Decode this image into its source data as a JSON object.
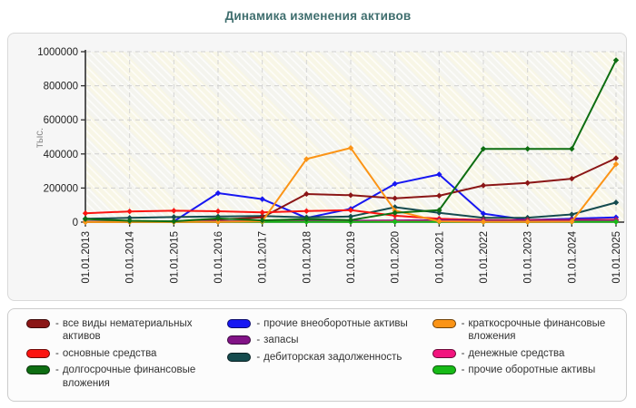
{
  "title": "Динамика изменения активов",
  "legend": {
    "separator": "-"
  },
  "chart_data": {
    "type": "line",
    "title": "Динамика изменения активов",
    "ylabel": "тыс.",
    "ylim": [
      0,
      1000000
    ],
    "y_ticks": [
      0,
      200000,
      400000,
      600000,
      800000,
      1000000
    ],
    "y_tick_labels": [
      "0",
      "200000",
      "400000",
      "600000",
      "800000",
      "1000000"
    ],
    "x": [
      "01.01.2013",
      "01.01.2014",
      "01.01.2015",
      "01.01.2016",
      "01.01.2017",
      "01.01.2018",
      "01.01.2019",
      "01.01.2020",
      "01.01.2021",
      "01.01.2022",
      "01.01.2023",
      "01.01.2024",
      "01.01.2025"
    ],
    "grid": "dashed",
    "legend_position": "bottom",
    "series": [
      {
        "name": "все виды нематериальных активов",
        "color": "#8b1616",
        "values": [
          2000,
          3000,
          5000,
          15000,
          28000,
          165000,
          158000,
          140000,
          155000,
          215000,
          230000,
          255000,
          375000
        ]
      },
      {
        "name": "основные средства",
        "color": "#fb1410",
        "values": [
          52000,
          63000,
          67000,
          64000,
          57000,
          65000,
          70000,
          38000,
          20000,
          13000,
          12000,
          13000,
          14000
        ]
      },
      {
        "name": "долгосрочные финансовые вложения",
        "color": "#0e6e12",
        "values": [
          18000,
          8000,
          5000,
          22000,
          10000,
          18000,
          12000,
          55000,
          70000,
          430000,
          430000,
          430000,
          950000
        ]
      },
      {
        "name": "прочие внеоборотные активы",
        "color": "#1717f2",
        "values": [
          1000,
          2000,
          4000,
          170000,
          135000,
          25000,
          78000,
          225000,
          280000,
          50000,
          13000,
          20000,
          28000
        ]
      },
      {
        "name": "запасы",
        "color": "#821387",
        "values": [
          4000,
          5000,
          5000,
          6000,
          7000,
          9000,
          8000,
          10000,
          12000,
          10000,
          8000,
          9000,
          10000
        ]
      },
      {
        "name": "дебиторская задолженность",
        "color": "#154b4e",
        "values": [
          20000,
          25000,
          30000,
          33000,
          36000,
          28000,
          33000,
          88000,
          55000,
          25000,
          26000,
          45000,
          115000
        ]
      },
      {
        "name": "краткосрочные финансовые вложения",
        "color": "#fb9416",
        "values": [
          500,
          1000,
          1000,
          2000,
          5000,
          370000,
          435000,
          68000,
          5000,
          2000,
          2000,
          3000,
          340000
        ]
      },
      {
        "name": "денежные средства",
        "color": "#f2147e",
        "values": [
          2000,
          2000,
          3000,
          2000,
          4000,
          3000,
          2000,
          6000,
          4000,
          3000,
          2000,
          3000,
          4000
        ]
      },
      {
        "name": "прочие оборотные активы",
        "color": "#17ba17",
        "values": [
          1000,
          1000,
          1000,
          1000,
          2000,
          2000,
          1000,
          2000,
          2000,
          1000,
          1000,
          2000,
          2000
        ]
      }
    ],
    "draw_order": [
      3,
      5,
      0,
      1,
      4,
      7,
      8,
      6,
      2
    ],
    "legend_columns": [
      [
        0,
        1,
        2
      ],
      [
        3,
        4,
        5
      ],
      [
        6,
        7,
        8
      ]
    ]
  }
}
